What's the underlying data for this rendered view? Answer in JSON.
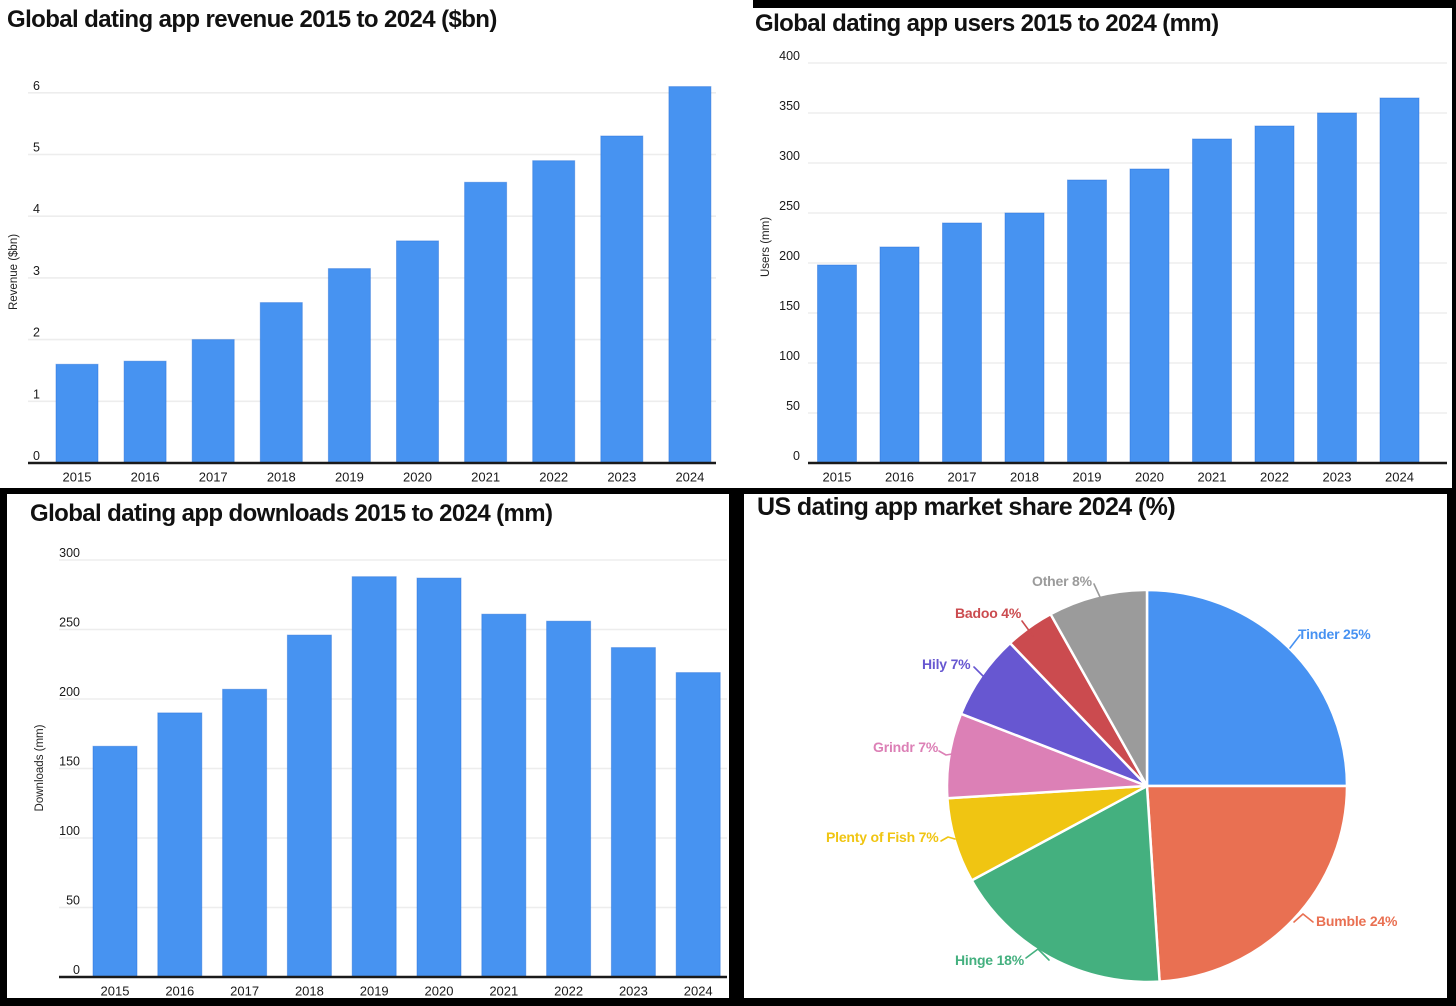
{
  "page": {
    "background": "#000000",
    "panel_background": "#ffffff",
    "axis_color": "#1a1a1a",
    "gridline_color": "#ededed",
    "tick_label_color": "#1a1a1a",
    "title_color": "#111111"
  },
  "chart_data": [
    {
      "id": "revenue",
      "type": "bar",
      "title": "Global dating app revenue 2015 to 2024 ($bn)",
      "categories": [
        "2015",
        "2016",
        "2017",
        "2018",
        "2019",
        "2020",
        "2021",
        "2022",
        "2023",
        "2024"
      ],
      "values": [
        1.6,
        1.65,
        2.0,
        2.6,
        3.15,
        3.6,
        4.55,
        4.9,
        5.3,
        6.1
      ],
      "xlabel": "",
      "ylabel": "Revenue ($bn)",
      "ylim": [
        0,
        6
      ],
      "ytick_step": 1,
      "ytick_labels": [
        "0",
        "1",
        "2",
        "3",
        "4",
        "5",
        "6"
      ],
      "bar_color": "#4793F1",
      "grid": true,
      "legend": "none"
    },
    {
      "id": "users",
      "type": "bar",
      "title": "Global dating app users 2015 to 2024 (mm)",
      "categories": [
        "2015",
        "2016",
        "2017",
        "2018",
        "2019",
        "2020",
        "2021",
        "2022",
        "2023",
        "2024"
      ],
      "values": [
        198,
        216,
        240,
        250,
        283,
        294,
        324,
        337,
        350,
        365
      ],
      "xlabel": "",
      "ylabel": "Users (mm)",
      "ylim": [
        0,
        400
      ],
      "ytick_step": 50,
      "ytick_labels": [
        "0",
        "50",
        "100",
        "150",
        "200",
        "250",
        "300",
        "350",
        "400"
      ],
      "bar_color": "#4793F1",
      "grid": true,
      "legend": "none"
    },
    {
      "id": "downloads",
      "type": "bar",
      "title": "Global dating app downloads 2015 to 2024 (mm)",
      "categories": [
        "2015",
        "2016",
        "2017",
        "2018",
        "2019",
        "2020",
        "2021",
        "2022",
        "2023",
        "2024"
      ],
      "values": [
        166,
        190,
        207,
        246,
        288,
        287,
        261,
        256,
        237,
        219
      ],
      "xlabel": "",
      "ylabel": "Downloads (mm)",
      "ylim": [
        0,
        300
      ],
      "ytick_step": 50,
      "ytick_labels": [
        "0",
        "50",
        "100",
        "150",
        "200",
        "250",
        "300"
      ],
      "bar_color": "#4793F1",
      "grid": true,
      "legend": "none"
    },
    {
      "id": "market_share",
      "type": "pie",
      "title": "US dating app market share 2024 (%)",
      "start_angle_deg": 0,
      "direction": "clockwise",
      "label_format": "{label} {value}%",
      "slices": [
        {
          "label": "Tinder",
          "value": 25,
          "color": "#4792F2"
        },
        {
          "label": "Bumble",
          "value": 24,
          "color": "#E97052"
        },
        {
          "label": "Hinge",
          "value": 18,
          "color": "#44B07F"
        },
        {
          "label": "Plenty of Fish",
          "value": 7,
          "color": "#F0C512"
        },
        {
          "label": "Grindr",
          "value": 7,
          "color": "#DC80B6"
        },
        {
          "label": "Hily",
          "value": 7,
          "color": "#6757D1"
        },
        {
          "label": "Badoo",
          "value": 4,
          "color": "#CB4B4F"
        },
        {
          "label": "Other",
          "value": 8,
          "color": "#9B9B9B"
        }
      ]
    }
  ]
}
